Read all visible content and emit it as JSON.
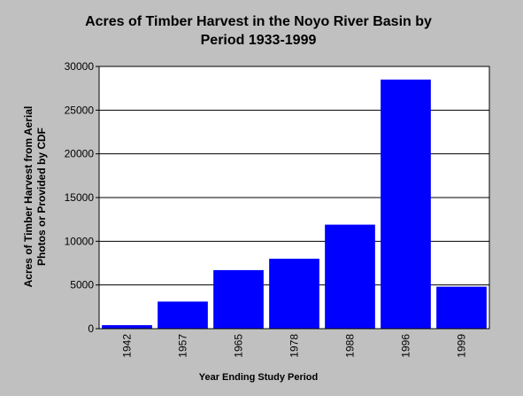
{
  "chart_data": {
    "type": "bar",
    "title": [
      "Acres of Timber Harvest in the Noyo River Basin by",
      "Period  1933-1999"
    ],
    "y_label": [
      "Acres of Timber Harvest from Aerial",
      "Photos or Provided by CDF"
    ],
    "x_label": "Year Ending Study Period",
    "categories": [
      "1942",
      "1957",
      "1965",
      "1978",
      "1988",
      "1996",
      "1999"
    ],
    "values": [
      400,
      3100,
      6700,
      8000,
      11900,
      28500,
      4800
    ],
    "color": "#0000ff",
    "ylim": [
      0,
      30000
    ],
    "yticks": [
      0,
      5000,
      10000,
      15000,
      20000,
      25000,
      30000
    ],
    "grid": true
  }
}
